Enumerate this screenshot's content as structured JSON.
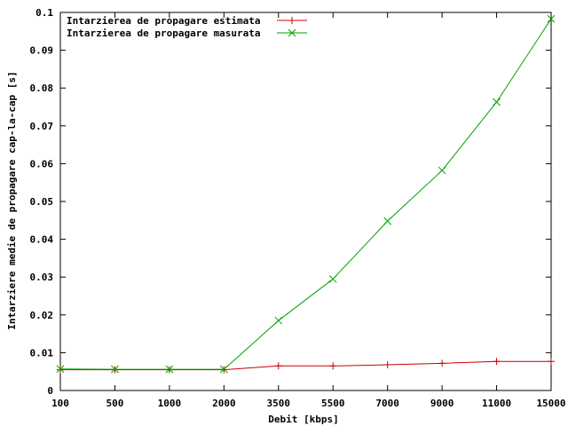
{
  "chart_data": {
    "type": "line",
    "title": "",
    "xlabel": "Debit [kbps]",
    "ylabel": "Intarziere medie de propagare cap-la-cap [s]",
    "categories": [
      "100",
      "500",
      "1000",
      "2000",
      "3500",
      "5500",
      "7000",
      "9000",
      "11000",
      "15000"
    ],
    "y_ticks": [
      "0",
      "0.01",
      "0.02",
      "0.03",
      "0.04",
      "0.05",
      "0.06",
      "0.07",
      "0.08",
      "0.09",
      "0.1"
    ],
    "ylim": [
      0,
      0.1
    ],
    "grid": false,
    "legend_position": "top-left",
    "series": [
      {
        "name": "Intarzierea de propagare estimata",
        "color": "#cc0000",
        "marker": "plus",
        "values": [
          0.0055,
          0.0055,
          0.0055,
          0.0055,
          0.0065,
          0.0065,
          0.0068,
          0.0072,
          0.0077,
          0.0077
        ]
      },
      {
        "name": "Intarzierea de propagare masurata",
        "color": "#00a000",
        "marker": "cross",
        "values": [
          0.0057,
          0.0056,
          0.0056,
          0.0056,
          0.0185,
          0.0295,
          0.0448,
          0.0582,
          0.0763,
          0.0983
        ]
      }
    ]
  }
}
